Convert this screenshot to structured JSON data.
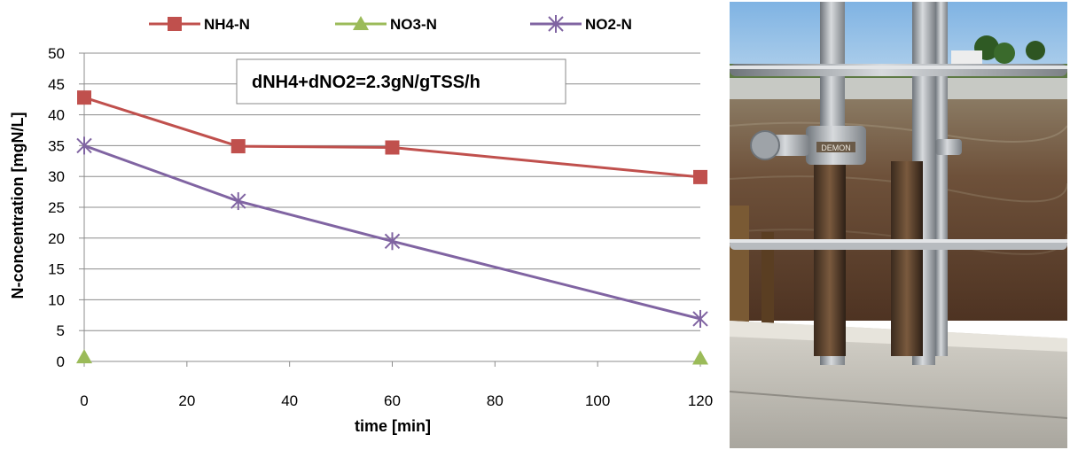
{
  "chart_data": {
    "type": "line",
    "title": "",
    "xlabel": "time [min]",
    "ylabel": "N-concentration [mgN/L]",
    "xlim": [
      0,
      120
    ],
    "ylim": [
      0,
      50
    ],
    "x_ticks": [
      0,
      20,
      40,
      60,
      80,
      100,
      120
    ],
    "y_ticks": [
      0,
      5,
      10,
      15,
      20,
      25,
      30,
      35,
      40,
      45,
      50
    ],
    "grid": "horizontal",
    "legend_position": "top",
    "annotation": "dNH4+dNO2=2.3gN/gTSS/h",
    "series": [
      {
        "name": "NH4-N",
        "color": "#C0504D",
        "marker": "square",
        "x": [
          0,
          30,
          60,
          120
        ],
        "y": [
          42.8,
          34.9,
          34.7,
          29.9
        ]
      },
      {
        "name": "NO3-N",
        "color": "#9BBB59",
        "marker": "triangle",
        "x": [
          0,
          120
        ],
        "y": [
          0.7,
          0.5
        ]
      },
      {
        "name": "NO2-N",
        "color": "#8064A2",
        "marker": "asterisk",
        "x": [
          0,
          30,
          60,
          120
        ],
        "y": [
          35.0,
          26.0,
          19.5,
          6.9
        ]
      }
    ]
  },
  "photo": {
    "label_text": "DEMON",
    "colors": {
      "sky": "#9CC3E6",
      "water": "#6B4A33",
      "concrete": "#B9B6AE",
      "steel": "#A4A8AC"
    }
  }
}
